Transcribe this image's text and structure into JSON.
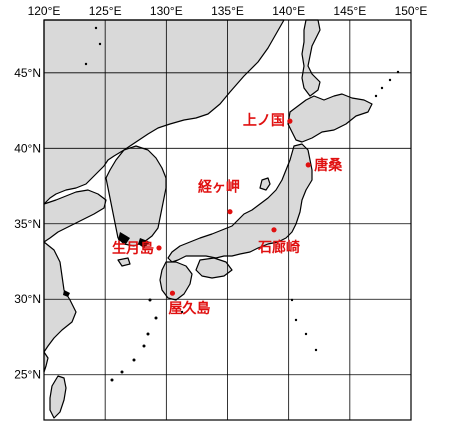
{
  "map": {
    "lon_ticks": [
      "120°E",
      "125°E",
      "130°E",
      "135°E",
      "140°E",
      "145°E",
      "150°E"
    ],
    "lat_ticks": [
      "45°N",
      "40°N",
      "35°N",
      "30°N",
      "25°N"
    ],
    "lon_range": [
      120,
      150
    ],
    "lat_range": [
      22,
      48.5
    ],
    "land_color": "#d9d9d9",
    "marker_color": "#e01010"
  },
  "places": [
    {
      "id": "kaminokuni",
      "name": "上ノ国",
      "lon": 140.1,
      "lat": 41.8
    },
    {
      "id": "karakuwa",
      "name": "唐桑",
      "lon": 141.6,
      "lat": 38.9
    },
    {
      "id": "kyogamisaki",
      "name": "経ヶ岬",
      "lon": 135.2,
      "lat": 35.8
    },
    {
      "id": "irozaki",
      "name": "石廊崎",
      "lon": 138.8,
      "lat": 34.6
    },
    {
      "id": "ikitsukishima",
      "name": "生月島",
      "lon": 129.4,
      "lat": 33.4
    },
    {
      "id": "yakushima",
      "name": "屋久島",
      "lon": 130.5,
      "lat": 30.4
    }
  ]
}
